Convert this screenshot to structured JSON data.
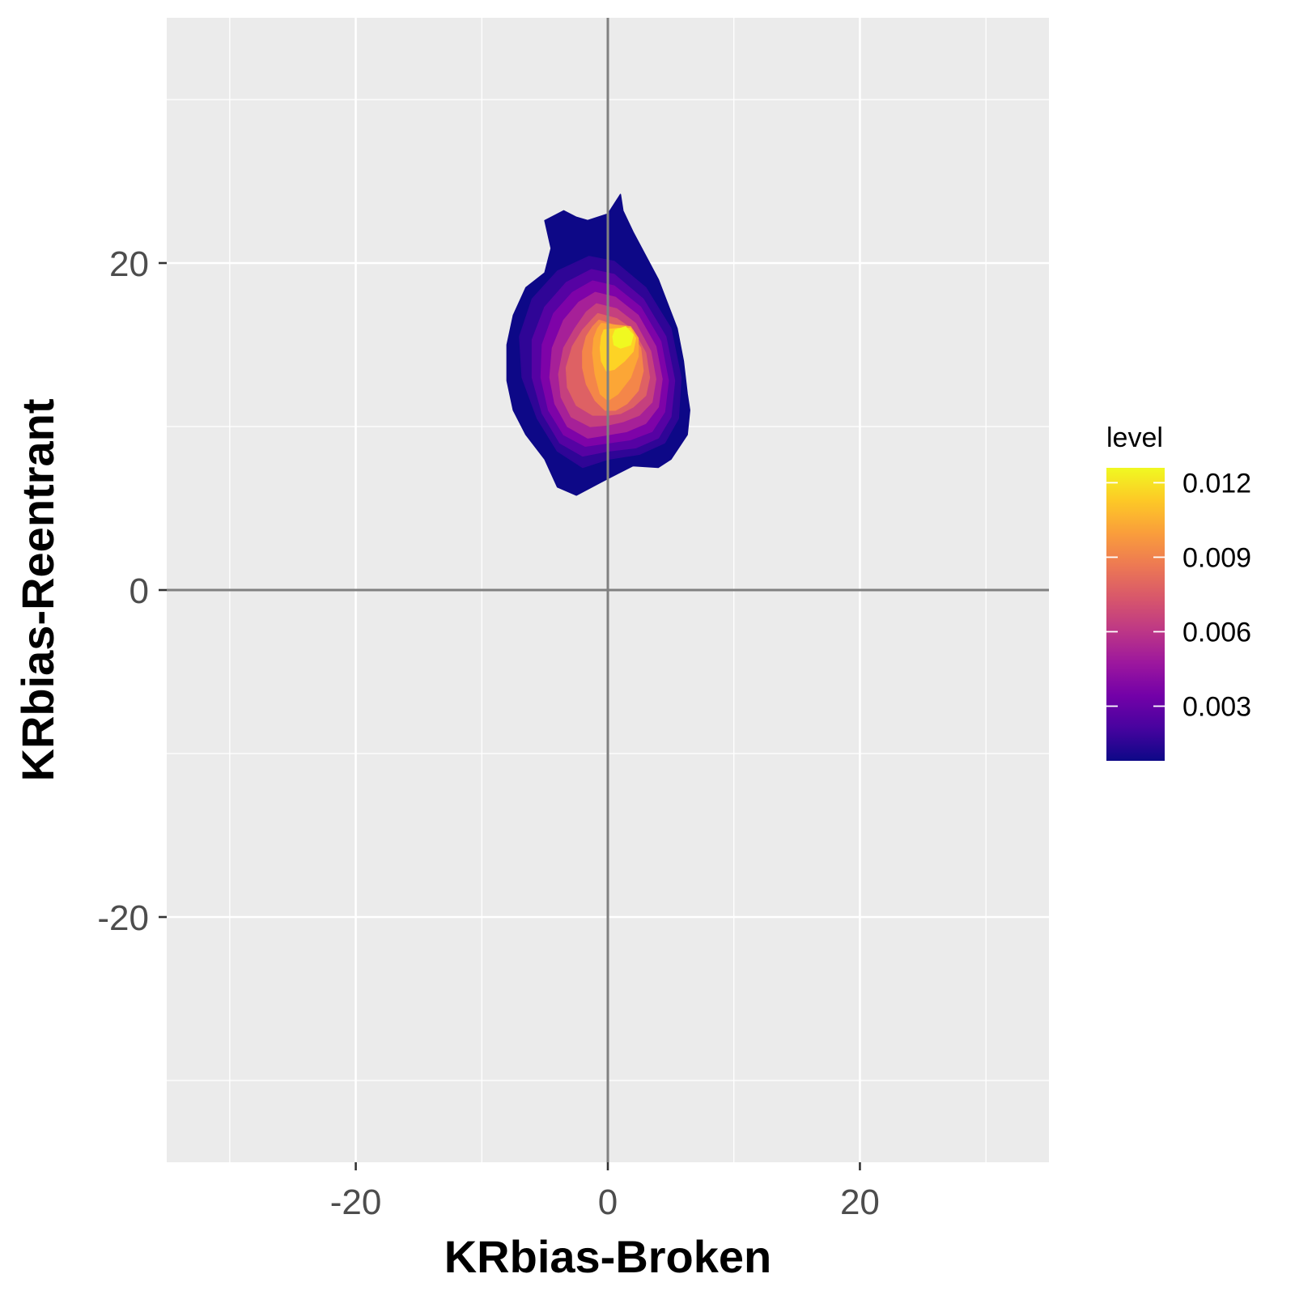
{
  "chart_data": {
    "type": "contour",
    "xlabel": "KRbias-Broken",
    "ylabel": "KRbias-Reentrant",
    "xlim": [
      -35,
      35
    ],
    "ylim": [
      -35,
      35
    ],
    "x_ticks": [
      -20,
      0,
      20
    ],
    "x_tick_labels": [
      "-20",
      "0",
      "20"
    ],
    "y_ticks": [
      -20,
      0,
      20
    ],
    "y_tick_labels": [
      "-20",
      "0",
      "20"
    ],
    "x_minor_grid": [
      -30,
      -10,
      10,
      30
    ],
    "y_minor_grid": [
      -30,
      -10,
      10,
      30
    ],
    "reference_lines": {
      "x": 0,
      "y": 0
    },
    "grid": true,
    "background": "#EBEBEB",
    "legend": {
      "title": "level",
      "position": "right",
      "breaks": [
        0.003,
        0.006,
        0.009,
        0.012
      ],
      "break_labels": [
        "0.003",
        "0.006",
        "0.009",
        "0.012"
      ],
      "range": [
        0.0008,
        0.0126
      ],
      "colormap": "plasma",
      "colors": [
        "#0D0887",
        "#47039F",
        "#7301A8",
        "#9C179E",
        "#BD3786",
        "#D8576B",
        "#ED7953",
        "#FA9E3B",
        "#FDC926",
        "#F0F921"
      ]
    },
    "density_peak": {
      "x": 1.3,
      "y": 15.5,
      "level": 0.0124
    },
    "contour_bands": [
      {
        "level": 0.0008,
        "color": "#0D0887",
        "x": [
          -1.6,
          0.0,
          1.0,
          1.2,
          2.0,
          4.0,
          5.5,
          6.0,
          6.3,
          6.5,
          6.3,
          5.0,
          4.0,
          2.0,
          -0.3,
          -2.5,
          -4.0,
          -5.0,
          -6.5,
          -7.5,
          -8.0,
          -8.0,
          -7.5,
          -6.5,
          -5.0,
          -4.5,
          -5.0,
          -3.5,
          -2.5,
          -1.6
        ],
        "y": [
          22.6,
          23.0,
          24.2,
          23.2,
          21.9,
          19.0,
          16.0,
          14.0,
          12.0,
          11.0,
          9.5,
          8.0,
          7.5,
          7.6,
          6.7,
          5.8,
          6.3,
          8.0,
          9.5,
          11.0,
          12.8,
          15.0,
          16.8,
          18.5,
          19.4,
          20.9,
          22.6,
          23.2,
          22.8,
          22.6
        ]
      },
      {
        "level": 0.002,
        "color": "#2F0596",
        "x": [
          -1.5,
          0.5,
          3.0,
          5.0,
          5.8,
          5.6,
          4.5,
          2.5,
          0.0,
          -2.0,
          -4.0,
          -5.6,
          -6.8,
          -7.0,
          -6.0,
          -4.0,
          -1.5
        ],
        "y": [
          20.4,
          20.1,
          18.5,
          16.0,
          13.0,
          10.5,
          9.0,
          8.3,
          8.0,
          7.5,
          8.5,
          10.5,
          13.0,
          15.5,
          17.8,
          19.5,
          20.4
        ]
      },
      {
        "level": 0.0032,
        "color": "#5602A3",
        "x": [
          -1.3,
          0.5,
          2.8,
          4.6,
          5.3,
          5.0,
          4.0,
          2.2,
          0.0,
          -2.0,
          -3.8,
          -5.2,
          -6.0,
          -6.0,
          -5.0,
          -3.3,
          -1.3
        ],
        "y": [
          19.6,
          19.3,
          17.8,
          15.5,
          12.8,
          10.6,
          9.3,
          8.7,
          8.5,
          8.2,
          9.0,
          10.8,
          13.0,
          15.3,
          17.3,
          18.8,
          19.6
        ]
      },
      {
        "level": 0.0044,
        "color": "#7E03A8",
        "x": [
          -1.2,
          0.5,
          2.6,
          4.2,
          4.8,
          4.5,
          3.5,
          1.8,
          0.0,
          -1.8,
          -3.5,
          -4.7,
          -5.3,
          -5.2,
          -4.3,
          -2.8,
          -1.2
        ],
        "y": [
          18.9,
          18.6,
          17.3,
          15.2,
          12.8,
          10.9,
          9.7,
          9.2,
          9.0,
          8.8,
          9.5,
          11.0,
          13.0,
          15.0,
          16.9,
          18.2,
          18.9
        ]
      },
      {
        "level": 0.0056,
        "color": "#A62098",
        "x": [
          -1.0,
          0.6,
          2.4,
          3.8,
          4.3,
          4.0,
          3.0,
          1.5,
          0.0,
          -1.6,
          -3.2,
          -4.2,
          -4.6,
          -4.4,
          -3.5,
          -2.3,
          -1.0
        ],
        "y": [
          18.2,
          17.9,
          16.8,
          14.9,
          12.9,
          11.2,
          10.2,
          9.7,
          9.5,
          9.3,
          10.0,
          11.4,
          13.0,
          14.8,
          16.5,
          17.6,
          18.2
        ]
      },
      {
        "level": 0.0068,
        "color": "#C5407E",
        "x": [
          -0.9,
          0.7,
          2.2,
          3.4,
          3.8,
          3.5,
          2.5,
          1.2,
          0.0,
          -1.4,
          -2.9,
          -3.7,
          -3.9,
          -3.5,
          -2.6,
          -1.7,
          -0.9
        ],
        "y": [
          17.5,
          17.2,
          16.3,
          14.6,
          12.9,
          11.5,
          10.7,
          10.3,
          10.1,
          10.0,
          10.6,
          11.8,
          13.2,
          14.8,
          16.0,
          17.0,
          17.5
        ]
      },
      {
        "level": 0.008,
        "color": "#DE6164",
        "x": [
          -0.8,
          0.7,
          2.0,
          3.0,
          3.3,
          3.0,
          2.0,
          1.0,
          0.0,
          -1.2,
          -2.5,
          -3.2,
          -3.3,
          -2.8,
          -2.0,
          -1.3,
          -0.8
        ],
        "y": [
          16.9,
          16.6,
          15.9,
          14.5,
          13.0,
          11.9,
          11.2,
          10.8,
          10.7,
          10.7,
          11.3,
          12.4,
          13.6,
          14.9,
          15.9,
          16.5,
          16.9
        ]
      },
      {
        "level": 0.0092,
        "color": "#F48649",
        "x": [
          -0.7,
          0.5,
          1.8,
          2.6,
          2.8,
          2.4,
          1.5,
          0.6,
          -0.2,
          -1.0,
          -1.7,
          -2.0,
          -2.0,
          -1.7,
          -1.2,
          -0.7
        ],
        "y": [
          16.5,
          16.2,
          15.8,
          14.8,
          13.4,
          12.2,
          11.4,
          11.0,
          11.0,
          11.6,
          12.6,
          13.6,
          14.6,
          15.5,
          16.1,
          16.5
        ]
      },
      {
        "level": 0.0104,
        "color": "#FCA636",
        "x": [
          -0.5,
          0.6,
          1.8,
          2.4,
          2.4,
          1.8,
          0.8,
          0.0,
          -0.6,
          -1.0,
          -1.2,
          -1.1,
          -0.8,
          -0.5
        ],
        "y": [
          16.3,
          16.2,
          16.1,
          15.4,
          14.3,
          13.0,
          12.0,
          11.6,
          12.0,
          13.2,
          14.5,
          15.4,
          16.0,
          16.3
        ]
      },
      {
        "level": 0.0116,
        "color": "#FDD325",
        "x": [
          -0.3,
          0.8,
          1.8,
          2.2,
          2.0,
          1.3,
          0.5,
          -0.1,
          -0.5,
          -0.6,
          -0.5,
          -0.3
        ],
        "y": [
          15.9,
          16.0,
          16.0,
          15.4,
          14.6,
          14.0,
          13.5,
          13.4,
          14.0,
          14.8,
          15.5,
          15.9
        ]
      },
      {
        "level": 0.0124,
        "color": "#F0F921",
        "x": [
          0.6,
          1.4,
          2.0,
          1.8,
          1.0,
          0.5,
          0.4,
          0.6
        ],
        "y": [
          15.9,
          16.1,
          15.6,
          15.0,
          14.8,
          15.0,
          15.5,
          15.9
        ]
      }
    ]
  }
}
